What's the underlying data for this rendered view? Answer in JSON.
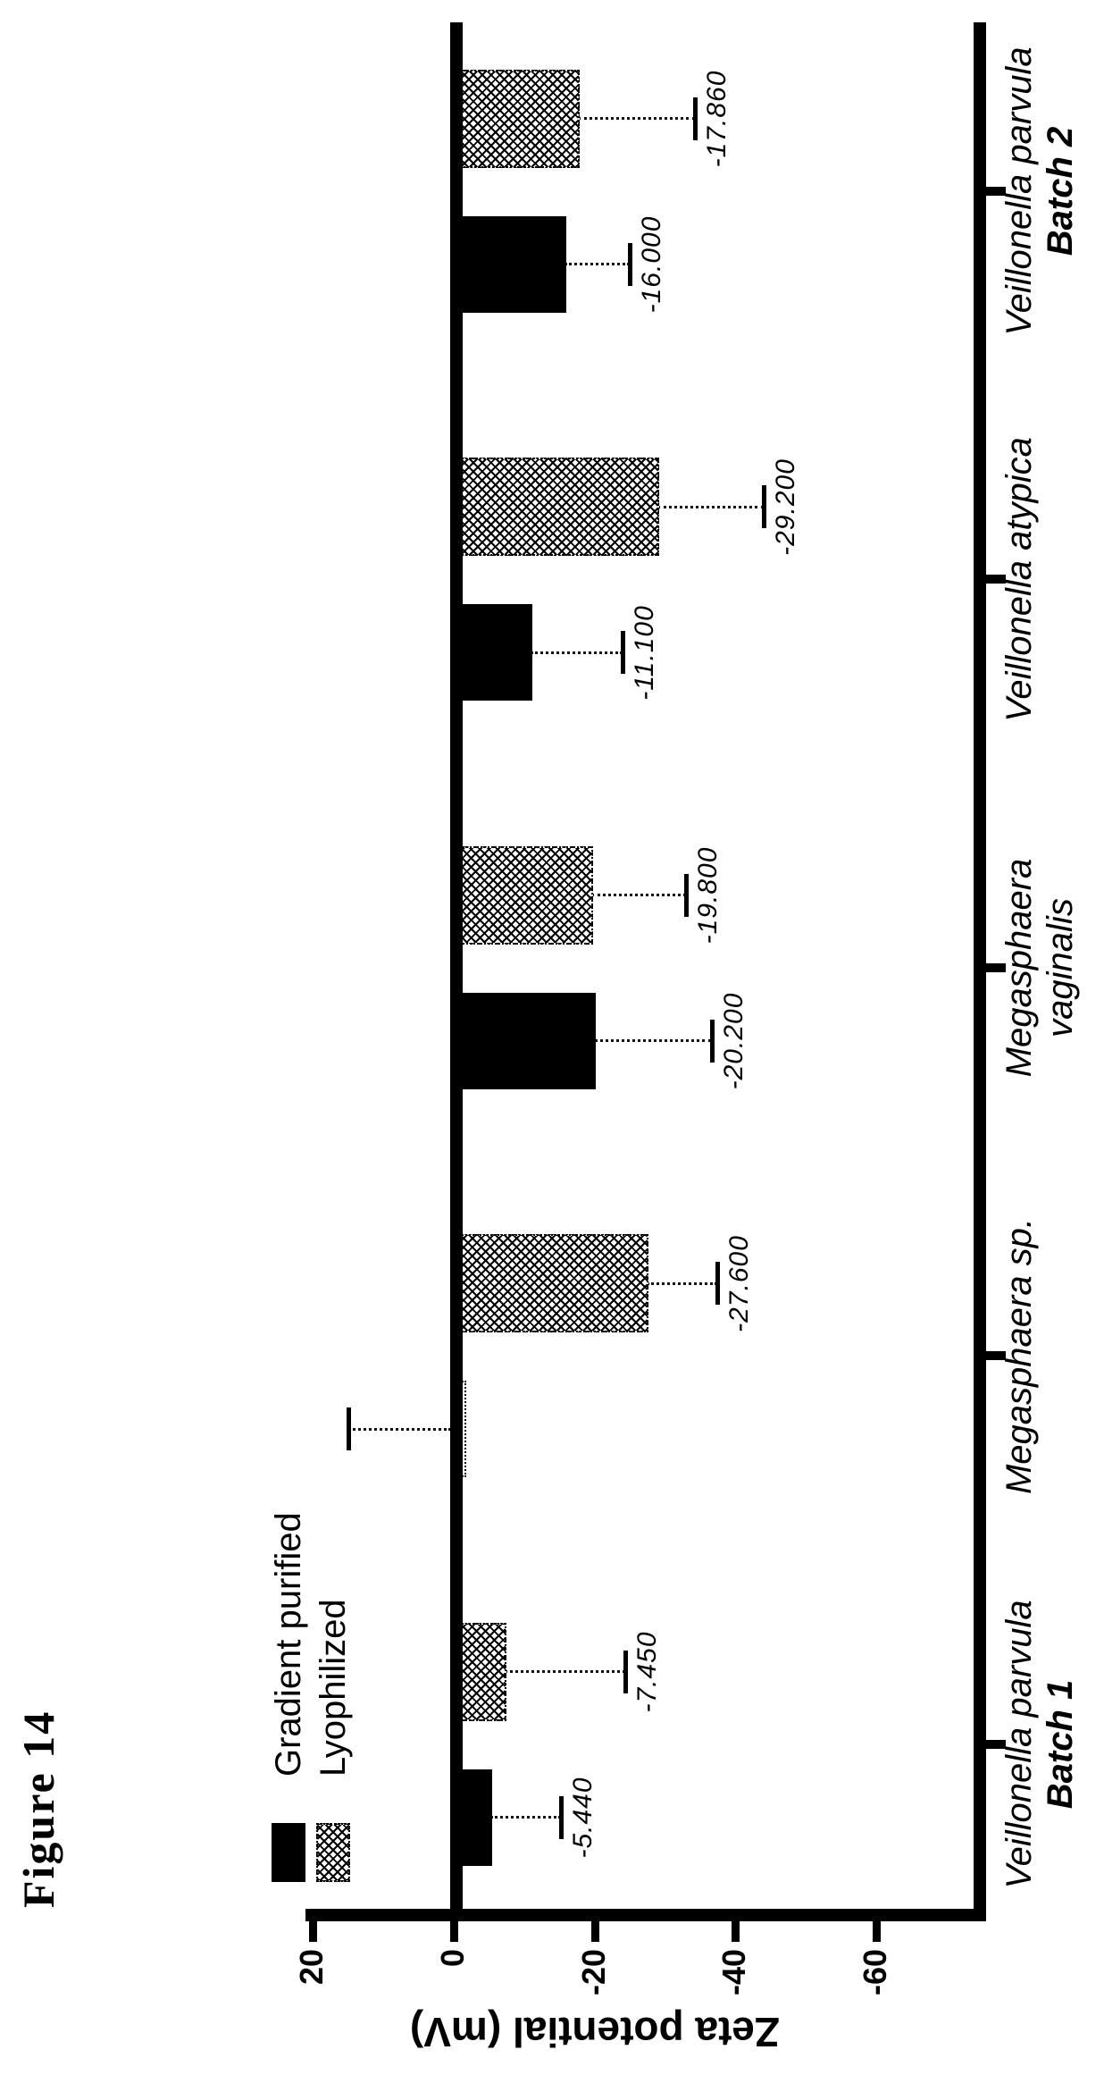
{
  "figure_label": "Figure 14",
  "colors": {
    "ink": "#000000",
    "paper": "#ffffff"
  },
  "chart_data": {
    "type": "bar",
    "title": "",
    "ylabel": "Zeta potential (mV)",
    "ylim": [
      20,
      -60
    ],
    "yticks": [
      "20",
      "0",
      "-20",
      "-40",
      "-60"
    ],
    "ytick_values": [
      20,
      0,
      -20,
      -40,
      -60
    ],
    "grid": false,
    "legend_position": "upper-left-inside",
    "categories": [
      {
        "lines": [
          "Veillonella parvula",
          "Batch 1"
        ]
      },
      {
        "lines": [
          "Megasphaera sp."
        ]
      },
      {
        "lines": [
          "Megasphaera",
          "vaginalis"
        ]
      },
      {
        "lines": [
          "Veillonella atypica"
        ]
      },
      {
        "lines": [
          "Veillonella parvula",
          "Batch 2"
        ]
      }
    ],
    "series": [
      {
        "name": "Gradient purified",
        "style": "solid-black",
        "values": [
          -5.44,
          -0.25,
          -20.2,
          -11.1,
          -16.0
        ],
        "value_labels": [
          "-5.440",
          "",
          "-20.200",
          "-11.100",
          "-16.000"
        ],
        "errors_mV": [
          9.8,
          15.2,
          16.4,
          12.9,
          9.0
        ],
        "error_direction": [
          "down",
          "up",
          "down",
          "down",
          "down"
        ]
      },
      {
        "name": "Lyophilized",
        "style": "hatched",
        "values": [
          -7.45,
          -27.6,
          -19.8,
          -29.2,
          -17.86
        ],
        "value_labels": [
          "-7.450",
          "-27.600",
          "-19.800",
          "-29.200",
          "-17.860"
        ],
        "errors_mV": [
          16.9,
          9.8,
          13.2,
          14.8,
          16.4
        ],
        "error_direction": [
          "down",
          "down",
          "down",
          "down",
          "down"
        ]
      }
    ]
  }
}
